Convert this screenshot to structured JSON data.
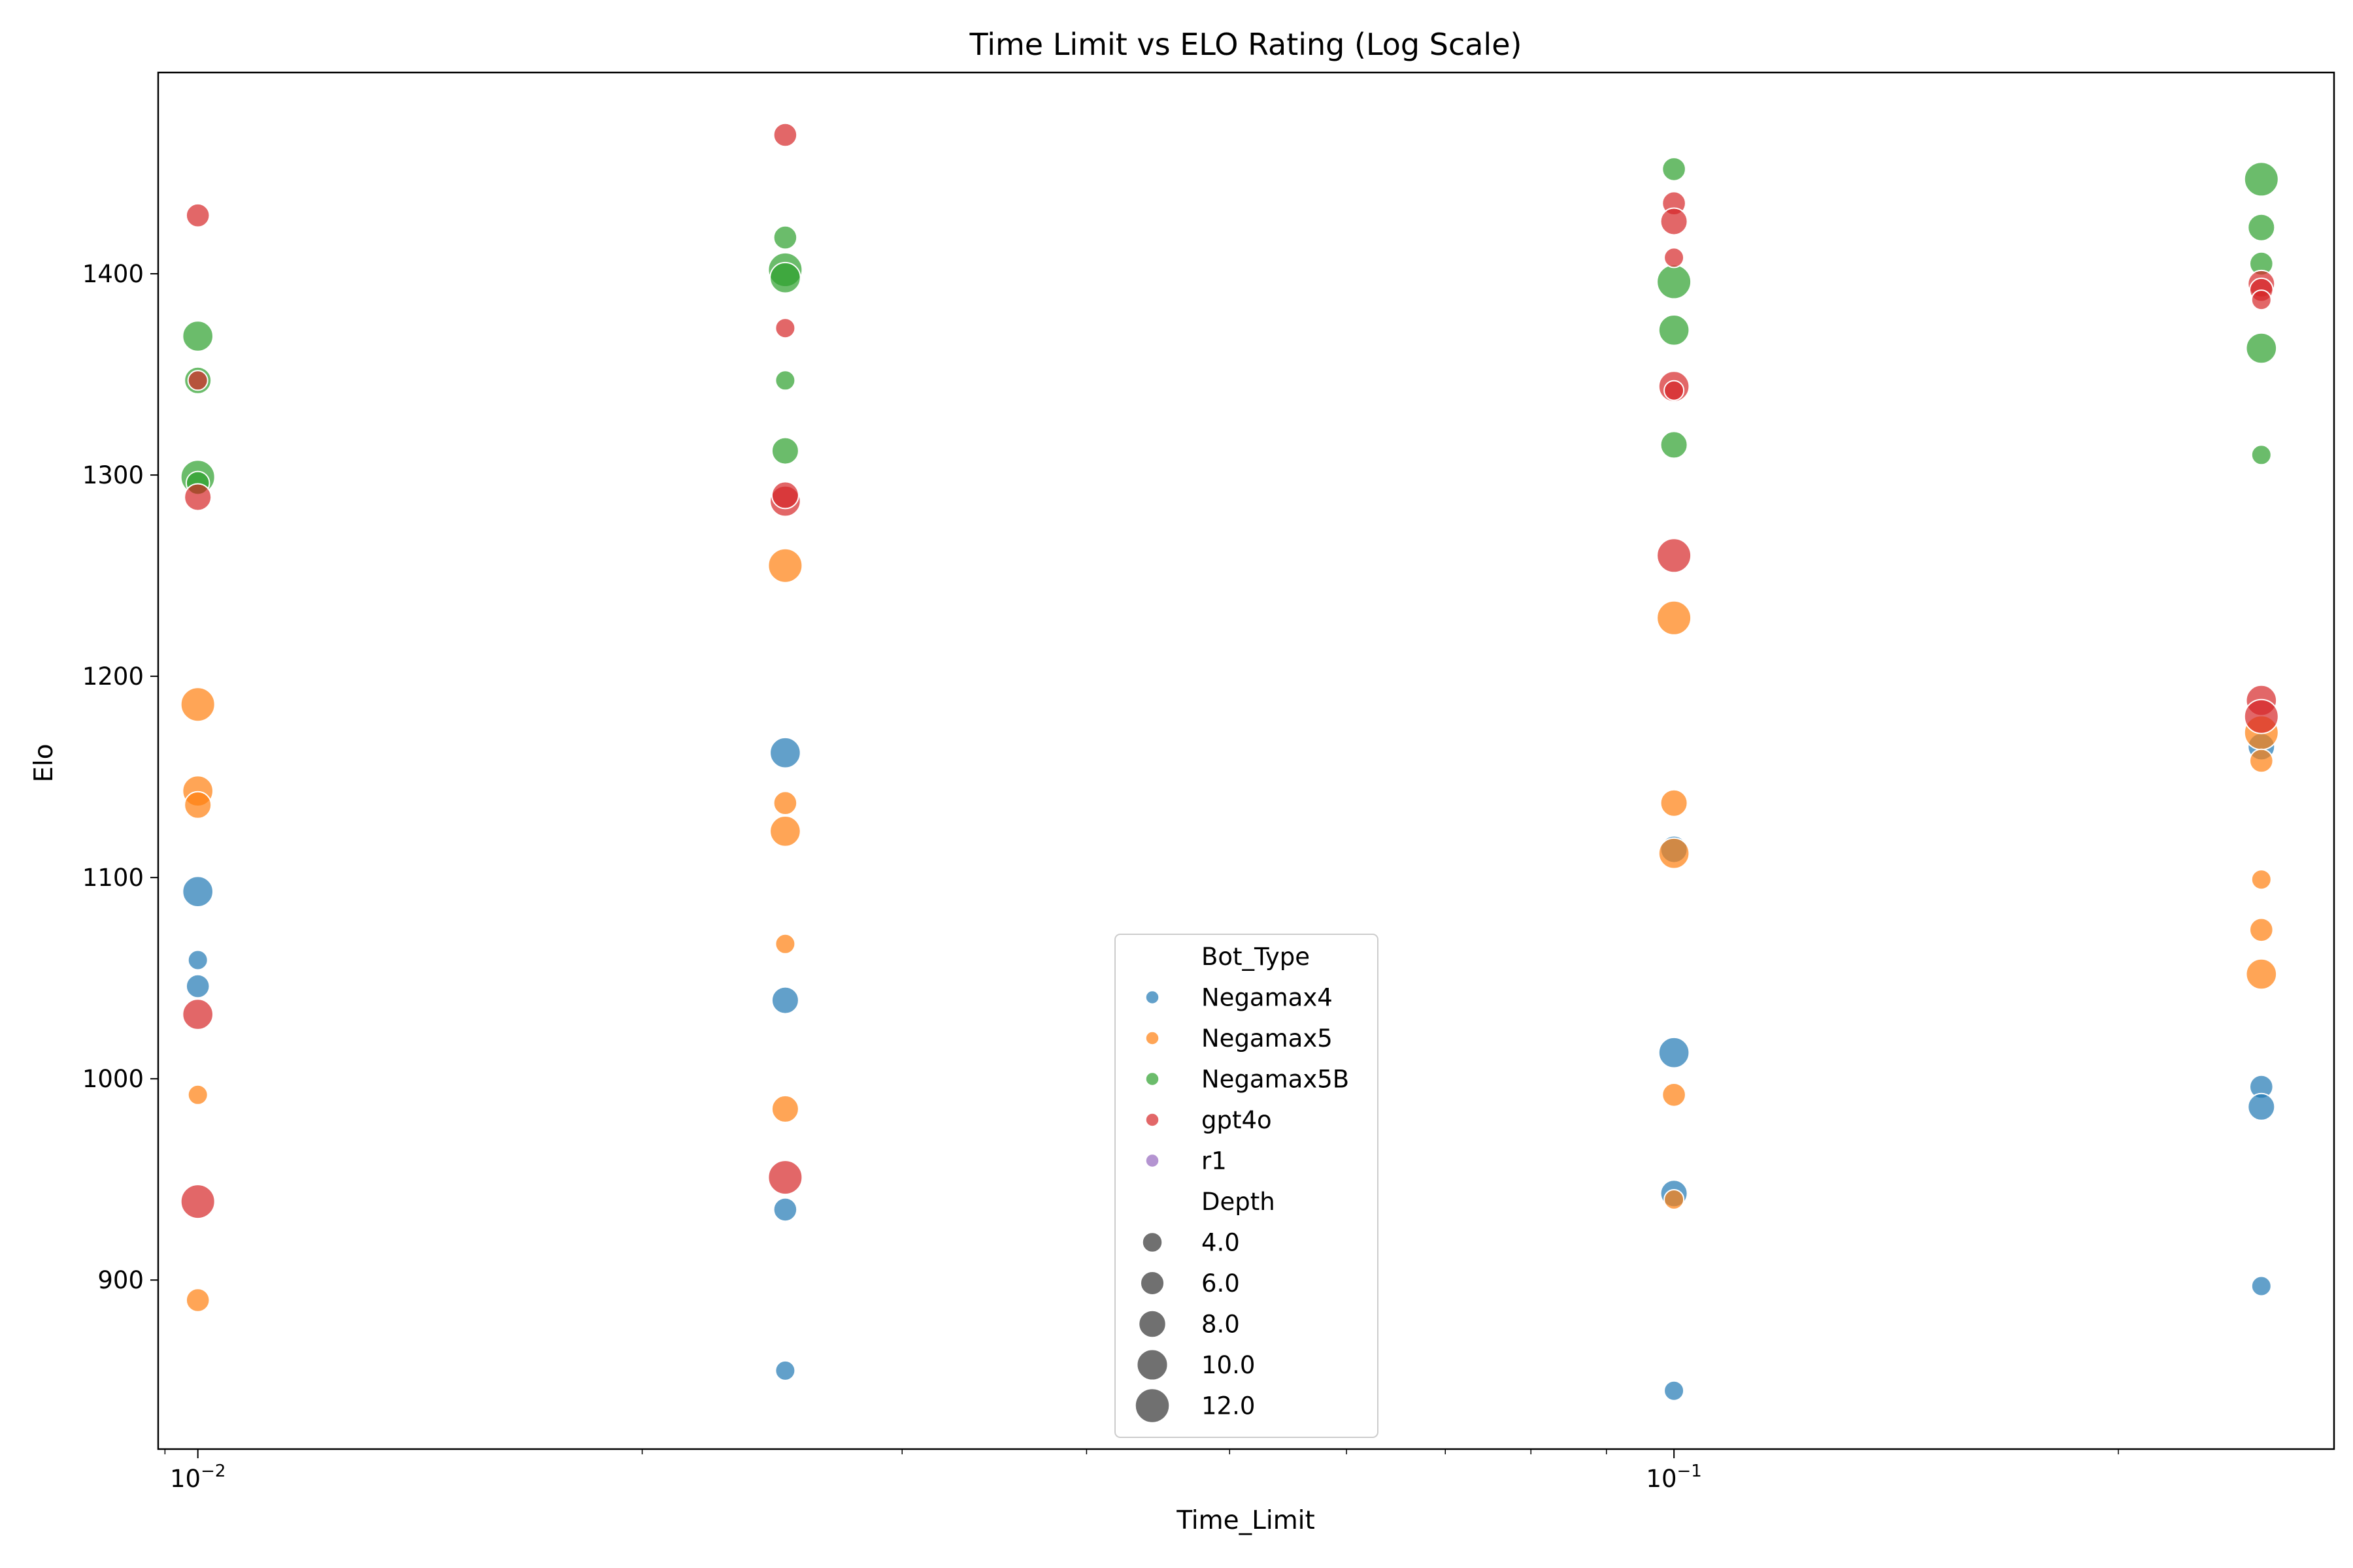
{
  "chart_data": {
    "type": "scatter",
    "title": "Time Limit vs ELO Rating (Log Scale)",
    "xlabel": "Time_Limit",
    "ylabel": "Elo",
    "x_scale": "log",
    "xlim": [
      0.0094,
      0.28
    ],
    "ylim": [
      816,
      1500
    ],
    "x_ticks": [
      {
        "value": 0.01,
        "base": "10",
        "exp": "−2"
      },
      {
        "value": 0.1,
        "base": "10",
        "exp": "−1"
      }
    ],
    "y_ticks": [
      900,
      1000,
      1100,
      1200,
      1300,
      1400
    ],
    "grid": false,
    "legend": {
      "placement": "lower-center",
      "hue_title": "Bot_Type",
      "size_title": "Depth",
      "sizes": [
        4.0,
        6.0,
        8.0,
        10.0,
        12.0
      ],
      "size_labels": [
        "4.0",
        "6.0",
        "8.0",
        "10.0",
        "12.0"
      ]
    },
    "series": [
      {
        "name": "Negamax4",
        "color": "#1f77b4",
        "points": [
          {
            "x": 0.01,
            "y": 1093,
            "depth": 10
          },
          {
            "x": 0.01,
            "y": 1059,
            "depth": 4
          },
          {
            "x": 0.01,
            "y": 1046,
            "depth": 6
          },
          {
            "x": 0.025,
            "y": 1162,
            "depth": 10
          },
          {
            "x": 0.025,
            "y": 1039,
            "depth": 8
          },
          {
            "x": 0.025,
            "y": 935,
            "depth": 6
          },
          {
            "x": 0.025,
            "y": 855,
            "depth": 4
          },
          {
            "x": 0.1,
            "y": 1114,
            "depth": 8
          },
          {
            "x": 0.1,
            "y": 1013,
            "depth": 10
          },
          {
            "x": 0.1,
            "y": 943,
            "depth": 8
          },
          {
            "x": 0.1,
            "y": 845,
            "depth": 4
          },
          {
            "x": 0.25,
            "y": 1165,
            "depth": 8
          },
          {
            "x": 0.25,
            "y": 996,
            "depth": 6
          },
          {
            "x": 0.25,
            "y": 986,
            "depth": 8
          },
          {
            "x": 0.25,
            "y": 897,
            "depth": 4
          }
        ]
      },
      {
        "name": "Negamax5",
        "color": "#ff7f0e",
        "points": [
          {
            "x": 0.01,
            "y": 1186,
            "depth": 12
          },
          {
            "x": 0.01,
            "y": 1143,
            "depth": 10
          },
          {
            "x": 0.01,
            "y": 1136,
            "depth": 8
          },
          {
            "x": 0.01,
            "y": 992,
            "depth": 4
          },
          {
            "x": 0.01,
            "y": 890,
            "depth": 6
          },
          {
            "x": 0.025,
            "y": 1255,
            "depth": 12
          },
          {
            "x": 0.025,
            "y": 1137,
            "depth": 6
          },
          {
            "x": 0.025,
            "y": 1123,
            "depth": 10
          },
          {
            "x": 0.025,
            "y": 1067,
            "depth": 4
          },
          {
            "x": 0.025,
            "y": 985,
            "depth": 8
          },
          {
            "x": 0.1,
            "y": 1229,
            "depth": 12
          },
          {
            "x": 0.1,
            "y": 1137,
            "depth": 8
          },
          {
            "x": 0.1,
            "y": 1112,
            "depth": 10
          },
          {
            "x": 0.1,
            "y": 992,
            "depth": 6
          },
          {
            "x": 0.1,
            "y": 940,
            "depth": 4
          },
          {
            "x": 0.25,
            "y": 1172,
            "depth": 12
          },
          {
            "x": 0.25,
            "y": 1158,
            "depth": 6
          },
          {
            "x": 0.25,
            "y": 1099,
            "depth": 4
          },
          {
            "x": 0.25,
            "y": 1074,
            "depth": 6
          },
          {
            "x": 0.25,
            "y": 1052,
            "depth": 10
          }
        ]
      },
      {
        "name": "Negamax5B",
        "color": "#2ca02c",
        "points": [
          {
            "x": 0.01,
            "y": 1369,
            "depth": 10
          },
          {
            "x": 0.01,
            "y": 1347,
            "depth": 8
          },
          {
            "x": 0.01,
            "y": 1299,
            "depth": 12
          },
          {
            "x": 0.01,
            "y": 1296,
            "depth": 6
          },
          {
            "x": 0.025,
            "y": 1418,
            "depth": 6
          },
          {
            "x": 0.025,
            "y": 1402,
            "depth": 12
          },
          {
            "x": 0.025,
            "y": 1398,
            "depth": 10
          },
          {
            "x": 0.025,
            "y": 1347,
            "depth": 4
          },
          {
            "x": 0.025,
            "y": 1312,
            "depth": 8
          },
          {
            "x": 0.1,
            "y": 1452,
            "depth": 6
          },
          {
            "x": 0.1,
            "y": 1396,
            "depth": 12
          },
          {
            "x": 0.1,
            "y": 1372,
            "depth": 10
          },
          {
            "x": 0.1,
            "y": 1315,
            "depth": 8
          },
          {
            "x": 0.25,
            "y": 1447,
            "depth": 12
          },
          {
            "x": 0.25,
            "y": 1423,
            "depth": 8
          },
          {
            "x": 0.25,
            "y": 1405,
            "depth": 6
          },
          {
            "x": 0.25,
            "y": 1363,
            "depth": 10
          },
          {
            "x": 0.25,
            "y": 1310,
            "depth": 4
          }
        ]
      },
      {
        "name": "gpt4o",
        "color": "#d62728",
        "points": [
          {
            "x": 0.01,
            "y": 1429,
            "depth": 6
          },
          {
            "x": 0.01,
            "y": 1347,
            "depth": 4
          },
          {
            "x": 0.01,
            "y": 1289,
            "depth": 8
          },
          {
            "x": 0.01,
            "y": 1032,
            "depth": 10
          },
          {
            "x": 0.01,
            "y": 939,
            "depth": 12
          },
          {
            "x": 0.025,
            "y": 1469,
            "depth": 6
          },
          {
            "x": 0.025,
            "y": 1373,
            "depth": 4
          },
          {
            "x": 0.025,
            "y": 1287,
            "depth": 10
          },
          {
            "x": 0.025,
            "y": 1290,
            "depth": 8
          },
          {
            "x": 0.025,
            "y": 951,
            "depth": 12
          },
          {
            "x": 0.1,
            "y": 1435,
            "depth": 6
          },
          {
            "x": 0.1,
            "y": 1426,
            "depth": 8
          },
          {
            "x": 0.1,
            "y": 1408,
            "depth": 4
          },
          {
            "x": 0.1,
            "y": 1344,
            "depth": 10
          },
          {
            "x": 0.1,
            "y": 1342,
            "depth": 4
          },
          {
            "x": 0.1,
            "y": 1260,
            "depth": 12
          },
          {
            "x": 0.25,
            "y": 1395,
            "depth": 8
          },
          {
            "x": 0.25,
            "y": 1392,
            "depth": 6
          },
          {
            "x": 0.25,
            "y": 1387,
            "depth": 4
          },
          {
            "x": 0.25,
            "y": 1188,
            "depth": 10
          },
          {
            "x": 0.25,
            "y": 1180,
            "depth": 12
          }
        ]
      },
      {
        "name": "r1",
        "color": "#9467bd",
        "points": []
      }
    ]
  }
}
